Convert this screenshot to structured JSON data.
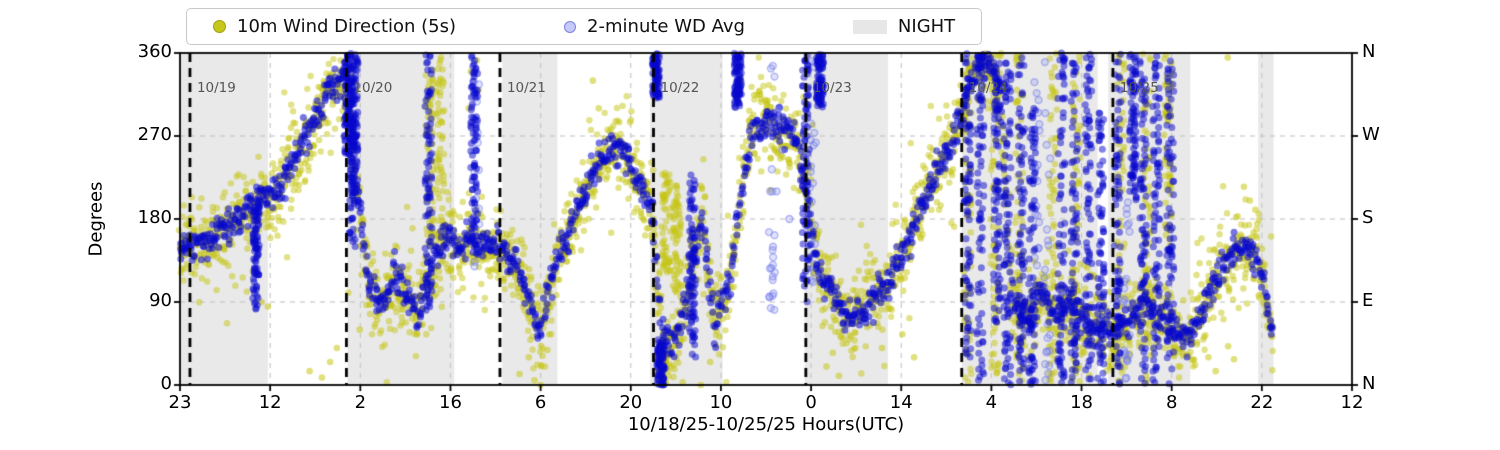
{
  "legend": {
    "items": [
      {
        "label": "10m Wind Direction (5s)",
        "marker": "wind-dot"
      },
      {
        "label": "2-minute WD Avg",
        "marker": "avg-dot"
      },
      {
        "label": "NIGHT",
        "marker": "night-patch"
      }
    ]
  },
  "axes": {
    "ylabel": "Degrees",
    "xlabel": "10/18/25-10/25/25  Hours(UTC)",
    "left_tick_labels": [
      "360",
      "270",
      "180",
      "90",
      "0"
    ],
    "left_tick_values": [
      360,
      270,
      180,
      90,
      0
    ],
    "right_tick_labels": [
      "N",
      "W",
      "S",
      "E",
      "N"
    ],
    "right_tick_values": [
      360,
      270,
      180,
      90,
      0
    ],
    "x_tick_labels": [
      "23",
      "12",
      "2",
      "16",
      "6",
      "20",
      "10",
      "0",
      "14",
      "4",
      "18",
      "8",
      "22",
      "12"
    ]
  },
  "chart_data": {
    "type": "scatter",
    "title": "",
    "xlabel": "10/18/25-10/25/25  Hours(UTC)",
    "ylabel": "Degrees",
    "ylim": [
      0,
      360
    ],
    "grid": true,
    "legend_position": "top",
    "series": [
      {
        "name": "10m Wind Direction (5s)",
        "color": "#c6c61c",
        "marker": "filled-dot"
      },
      {
        "name": "2-minute WD Avg",
        "color": "#0808cd",
        "marker": "translucent-dot"
      }
    ],
    "colors": {
      "wind": "198,198,20",
      "avg": "8,8,205",
      "avg_light": "120,128,235",
      "night": "#e9e9e9",
      "grid": "#c4c4c4",
      "day_line": "#000000",
      "day_label": "#555555"
    },
    "night_bands": [
      [
        0.0,
        0.075
      ],
      [
        0.143,
        0.234
      ],
      [
        0.275,
        0.322
      ],
      [
        0.401,
        0.463
      ],
      [
        0.533,
        0.604
      ],
      [
        0.667,
        0.783
      ],
      [
        0.792,
        0.862
      ],
      [
        0.92,
        0.933
      ]
    ],
    "day_lines": [
      {
        "f": 0.0085,
        "label": "10/19"
      },
      {
        "f": 0.142,
        "label": "10/20"
      },
      {
        "f": 0.273,
        "label": "10/21"
      },
      {
        "f": 0.404,
        "label": "10/22"
      },
      {
        "f": 0.534,
        "label": "10/23"
      },
      {
        "f": 0.667,
        "label": "10/24"
      },
      {
        "f": 0.796,
        "label": "10/25"
      }
    ],
    "trend": [
      [
        0.001,
        155
      ],
      [
        0.017,
        150
      ],
      [
        0.038,
        170
      ],
      [
        0.051,
        180
      ],
      [
        0.06,
        190
      ],
      [
        0.073,
        205
      ],
      [
        0.085,
        220
      ],
      [
        0.102,
        250
      ],
      [
        0.118,
        295
      ],
      [
        0.13,
        330
      ],
      [
        0.141,
        330
      ],
      [
        0.148,
        255
      ],
      [
        0.152,
        200
      ],
      [
        0.16,
        115
      ],
      [
        0.172,
        90
      ],
      [
        0.183,
        120
      ],
      [
        0.195,
        90
      ],
      [
        0.203,
        75
      ],
      [
        0.215,
        130
      ],
      [
        0.226,
        160
      ],
      [
        0.237,
        145
      ],
      [
        0.247,
        165
      ],
      [
        0.26,
        150
      ],
      [
        0.273,
        150
      ],
      [
        0.286,
        135
      ],
      [
        0.297,
        95
      ],
      [
        0.307,
        50
      ],
      [
        0.314,
        100
      ],
      [
        0.323,
        145
      ],
      [
        0.334,
        170
      ],
      [
        0.348,
        215
      ],
      [
        0.36,
        245
      ],
      [
        0.371,
        265
      ],
      [
        0.382,
        245
      ],
      [
        0.392,
        215
      ],
      [
        0.403,
        185
      ],
      [
        0.409,
        90
      ],
      [
        0.414,
        45
      ],
      [
        0.425,
        50
      ],
      [
        0.437,
        120
      ],
      [
        0.446,
        180
      ],
      [
        0.456,
        70
      ],
      [
        0.468,
        110
      ],
      [
        0.478,
        200
      ],
      [
        0.488,
        275
      ],
      [
        0.502,
        285
      ],
      [
        0.514,
        275
      ],
      [
        0.525,
        265
      ],
      [
        0.534,
        220
      ],
      [
        0.544,
        130
      ],
      [
        0.556,
        95
      ],
      [
        0.57,
        75
      ],
      [
        0.582,
        80
      ],
      [
        0.594,
        95
      ],
      [
        0.606,
        115
      ],
      [
        0.619,
        150
      ],
      [
        0.631,
        190
      ],
      [
        0.644,
        225
      ],
      [
        0.657,
        260
      ],
      [
        0.668,
        300
      ],
      [
        0.678,
        335
      ],
      [
        0.689,
        350
      ],
      [
        0.7,
        320
      ],
      [
        0.71,
        90
      ],
      [
        0.721,
        70
      ],
      [
        0.734,
        100
      ],
      [
        0.747,
        80
      ],
      [
        0.759,
        90
      ],
      [
        0.772,
        70
      ],
      [
        0.785,
        60
      ],
      [
        0.796,
        55
      ],
      [
        0.809,
        70
      ],
      [
        0.821,
        90
      ],
      [
        0.834,
        80
      ],
      [
        0.846,
        60
      ],
      [
        0.858,
        50
      ],
      [
        0.87,
        75
      ],
      [
        0.883,
        110
      ],
      [
        0.896,
        140
      ],
      [
        0.909,
        155
      ],
      [
        0.92,
        135
      ],
      [
        0.927,
        85
      ],
      [
        0.932,
        50
      ]
    ],
    "spread": {
      "wind_sigma_deg": 20,
      "avg_sigma_deg": 9
    },
    "streaks": [
      {
        "f": 0.065,
        "lo": 80,
        "hi": 200,
        "s": "avg"
      },
      {
        "f": 0.143,
        "lo": 250,
        "hi": 360,
        "s": "avg"
      },
      {
        "f": 0.147,
        "lo": 150,
        "hi": 360,
        "s": "avg"
      },
      {
        "f": 0.149,
        "lo": 200,
        "hi": 360,
        "s": "avg"
      },
      {
        "f": 0.212,
        "lo": 80,
        "hi": 360,
        "s": "avg"
      },
      {
        "f": 0.213,
        "lo": 150,
        "hi": 360,
        "s": "wind"
      },
      {
        "f": 0.222,
        "lo": 150,
        "hi": 360,
        "s": "wind"
      },
      {
        "f": 0.251,
        "lo": 150,
        "hi": 360,
        "s": "avg"
      },
      {
        "f": 0.253,
        "lo": 120,
        "hi": 330,
        "s": "avg_light"
      },
      {
        "f": 0.406,
        "lo": 310,
        "hi": 360,
        "s": "avg"
      },
      {
        "f": 0.41,
        "lo": 0,
        "hi": 50,
        "s": "avg"
      },
      {
        "f": 0.412,
        "lo": 0,
        "hi": 40,
        "s": "wind"
      },
      {
        "f": 0.415,
        "lo": 120,
        "hi": 230,
        "s": "wind"
      },
      {
        "f": 0.424,
        "lo": 100,
        "hi": 220,
        "s": "wind"
      },
      {
        "f": 0.437,
        "lo": 30,
        "hi": 230,
        "s": "avg"
      },
      {
        "f": 0.476,
        "lo": 300,
        "hi": 360,
        "s": "avg"
      },
      {
        "f": 0.505,
        "lo": 80,
        "hi": 360,
        "s": "avg_light"
      },
      {
        "f": 0.534,
        "lo": 90,
        "hi": 360,
        "s": "avg"
      },
      {
        "f": 0.54,
        "lo": 100,
        "hi": 360,
        "s": "avg_light"
      },
      {
        "f": 0.546,
        "lo": 300,
        "hi": 360,
        "s": "avg"
      },
      {
        "f": 0.672,
        "lo": 0,
        "hi": 360,
        "s": "wind"
      },
      {
        "f": 0.672,
        "lo": 30,
        "hi": 360,
        "s": "avg"
      },
      {
        "f": 0.683,
        "lo": 0,
        "hi": 360,
        "s": "avg"
      },
      {
        "f": 0.695,
        "lo": 0,
        "hi": 360,
        "s": "wind"
      },
      {
        "f": 0.697,
        "lo": 60,
        "hi": 360,
        "s": "avg"
      },
      {
        "f": 0.706,
        "lo": 0,
        "hi": 360,
        "s": "avg"
      },
      {
        "f": 0.716,
        "lo": 0,
        "hi": 360,
        "s": "wind"
      },
      {
        "f": 0.718,
        "lo": 0,
        "hi": 360,
        "s": "avg"
      },
      {
        "f": 0.727,
        "lo": 0,
        "hi": 300,
        "s": "avg"
      },
      {
        "f": 0.731,
        "lo": 60,
        "hi": 330,
        "s": "avg_light"
      },
      {
        "f": 0.74,
        "lo": 0,
        "hi": 360,
        "s": "avg_light"
      },
      {
        "f": 0.745,
        "lo": 0,
        "hi": 360,
        "s": "wind"
      },
      {
        "f": 0.752,
        "lo": 0,
        "hi": 360,
        "s": "avg"
      },
      {
        "f": 0.763,
        "lo": 0,
        "hi": 360,
        "s": "avg"
      },
      {
        "f": 0.765,
        "lo": 0,
        "hi": 360,
        "s": "wind"
      },
      {
        "f": 0.775,
        "lo": 0,
        "hi": 360,
        "s": "avg"
      },
      {
        "f": 0.786,
        "lo": 0,
        "hi": 300,
        "s": "avg"
      },
      {
        "f": 0.8,
        "lo": 0,
        "hi": 360,
        "s": "avg"
      },
      {
        "f": 0.803,
        "lo": 0,
        "hi": 360,
        "s": "wind"
      },
      {
        "f": 0.808,
        "lo": 0,
        "hi": 200,
        "s": "avg_light"
      },
      {
        "f": 0.813,
        "lo": 200,
        "hi": 360,
        "s": "avg"
      },
      {
        "f": 0.822,
        "lo": 0,
        "hi": 360,
        "s": "avg"
      },
      {
        "f": 0.825,
        "lo": 0,
        "hi": 360,
        "s": "wind"
      },
      {
        "f": 0.833,
        "lo": 0,
        "hi": 360,
        "s": "avg"
      },
      {
        "f": 0.843,
        "lo": 150,
        "hi": 360,
        "s": "wind"
      },
      {
        "f": 0.845,
        "lo": 0,
        "hi": 360,
        "s": "avg"
      }
    ],
    "outliers_wind": [
      [
        0.11,
        15
      ],
      [
        0.12,
        8
      ],
      [
        0.128,
        25
      ],
      [
        0.135,
        40
      ],
      [
        0.29,
        12
      ],
      [
        0.298,
        30
      ],
      [
        0.304,
        5
      ],
      [
        0.312,
        38
      ],
      [
        0.318,
        55
      ],
      [
        0.306,
        0
      ],
      [
        0.311,
        20
      ],
      [
        0.253,
        352
      ],
      [
        0.247,
        300
      ],
      [
        0.249,
        340
      ],
      [
        0.254,
        320
      ],
      [
        0.41,
        8
      ],
      [
        0.418,
        15
      ],
      [
        0.428,
        3
      ],
      [
        0.443,
        0
      ],
      [
        0.452,
        25
      ],
      [
        0.477,
        345
      ],
      [
        0.48,
        330
      ],
      [
        0.55,
        20
      ],
      [
        0.556,
        35
      ],
      [
        0.562,
        10
      ],
      [
        0.6,
        40
      ],
      [
        0.615,
        55
      ],
      [
        0.625,
        30
      ],
      [
        0.878,
        30
      ],
      [
        0.884,
        15
      ],
      [
        0.893,
        42
      ],
      [
        0.901,
        28
      ],
      [
        0.894,
        355
      ],
      [
        0.908,
        215
      ],
      [
        0.913,
        200
      ],
      [
        0.916,
        190
      ],
      [
        0.352,
        330
      ],
      [
        0.356,
        300
      ],
      [
        0.07,
        90
      ],
      [
        0.075,
        85
      ],
      [
        0.142,
        100
      ],
      [
        0.155,
        60
      ]
    ],
    "outliers_avg_light": [
      [
        0.503,
        95
      ],
      [
        0.506,
        150
      ],
      [
        0.509,
        210
      ],
      [
        0.511,
        300
      ],
      [
        0.514,
        255
      ],
      [
        0.52,
        180
      ],
      [
        0.8,
        30
      ],
      [
        0.802,
        60
      ],
      [
        0.805,
        90
      ]
    ]
  }
}
